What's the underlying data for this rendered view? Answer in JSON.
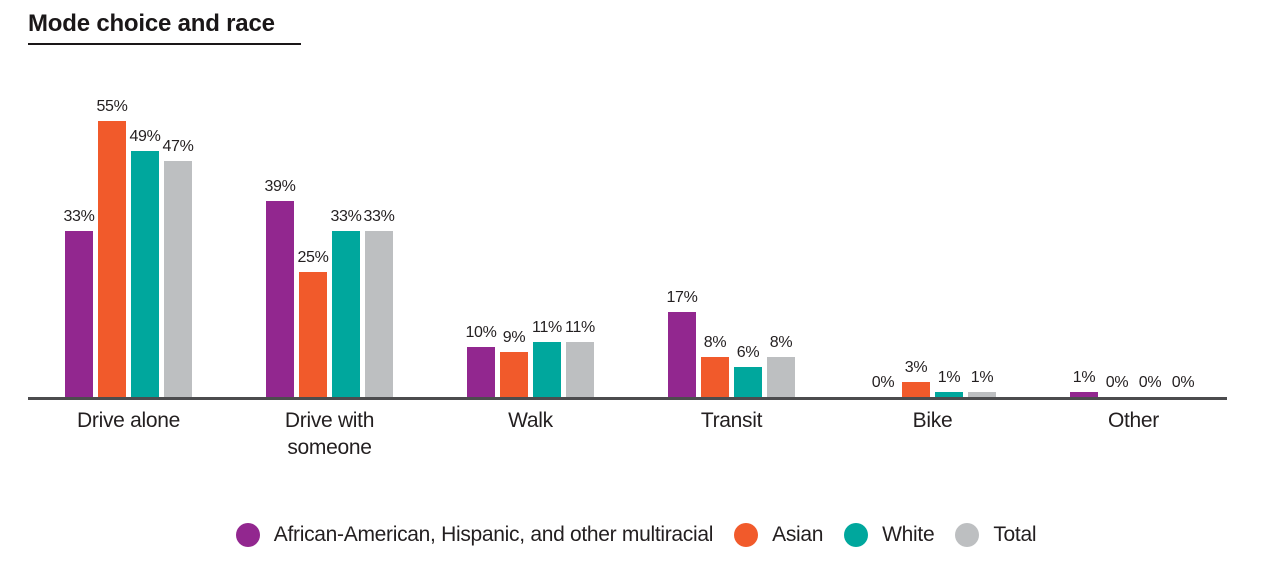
{
  "title": "Mode choice and race",
  "chart_data": {
    "type": "bar",
    "title": "Mode choice and race",
    "categories": [
      "Drive alone",
      "Drive with someone",
      "Walk",
      "Transit",
      "Bike",
      "Other"
    ],
    "series": [
      {
        "name": "African-American, Hispanic, and other multiracial",
        "color": "#92278F",
        "values": [
          33,
          39,
          10,
          17,
          0,
          1
        ]
      },
      {
        "name": "Asian",
        "color": "#F15A2B",
        "values": [
          55,
          25,
          9,
          8,
          3,
          0
        ]
      },
      {
        "name": "White",
        "color": "#00A79D",
        "values": [
          49,
          33,
          11,
          6,
          1,
          0
        ]
      },
      {
        "name": "Total",
        "color": "#BDBFC1",
        "values": [
          47,
          33,
          11,
          8,
          1,
          0
        ]
      }
    ],
    "value_suffix": "%",
    "value_labels_shown": true,
    "xlabel": "",
    "ylabel": "",
    "ylim": [
      0,
      55
    ],
    "grid": false,
    "y_axis_shown": false,
    "legend_position": "bottom",
    "axis_color": "#4C4C4E",
    "text_color": "#231F20"
  }
}
